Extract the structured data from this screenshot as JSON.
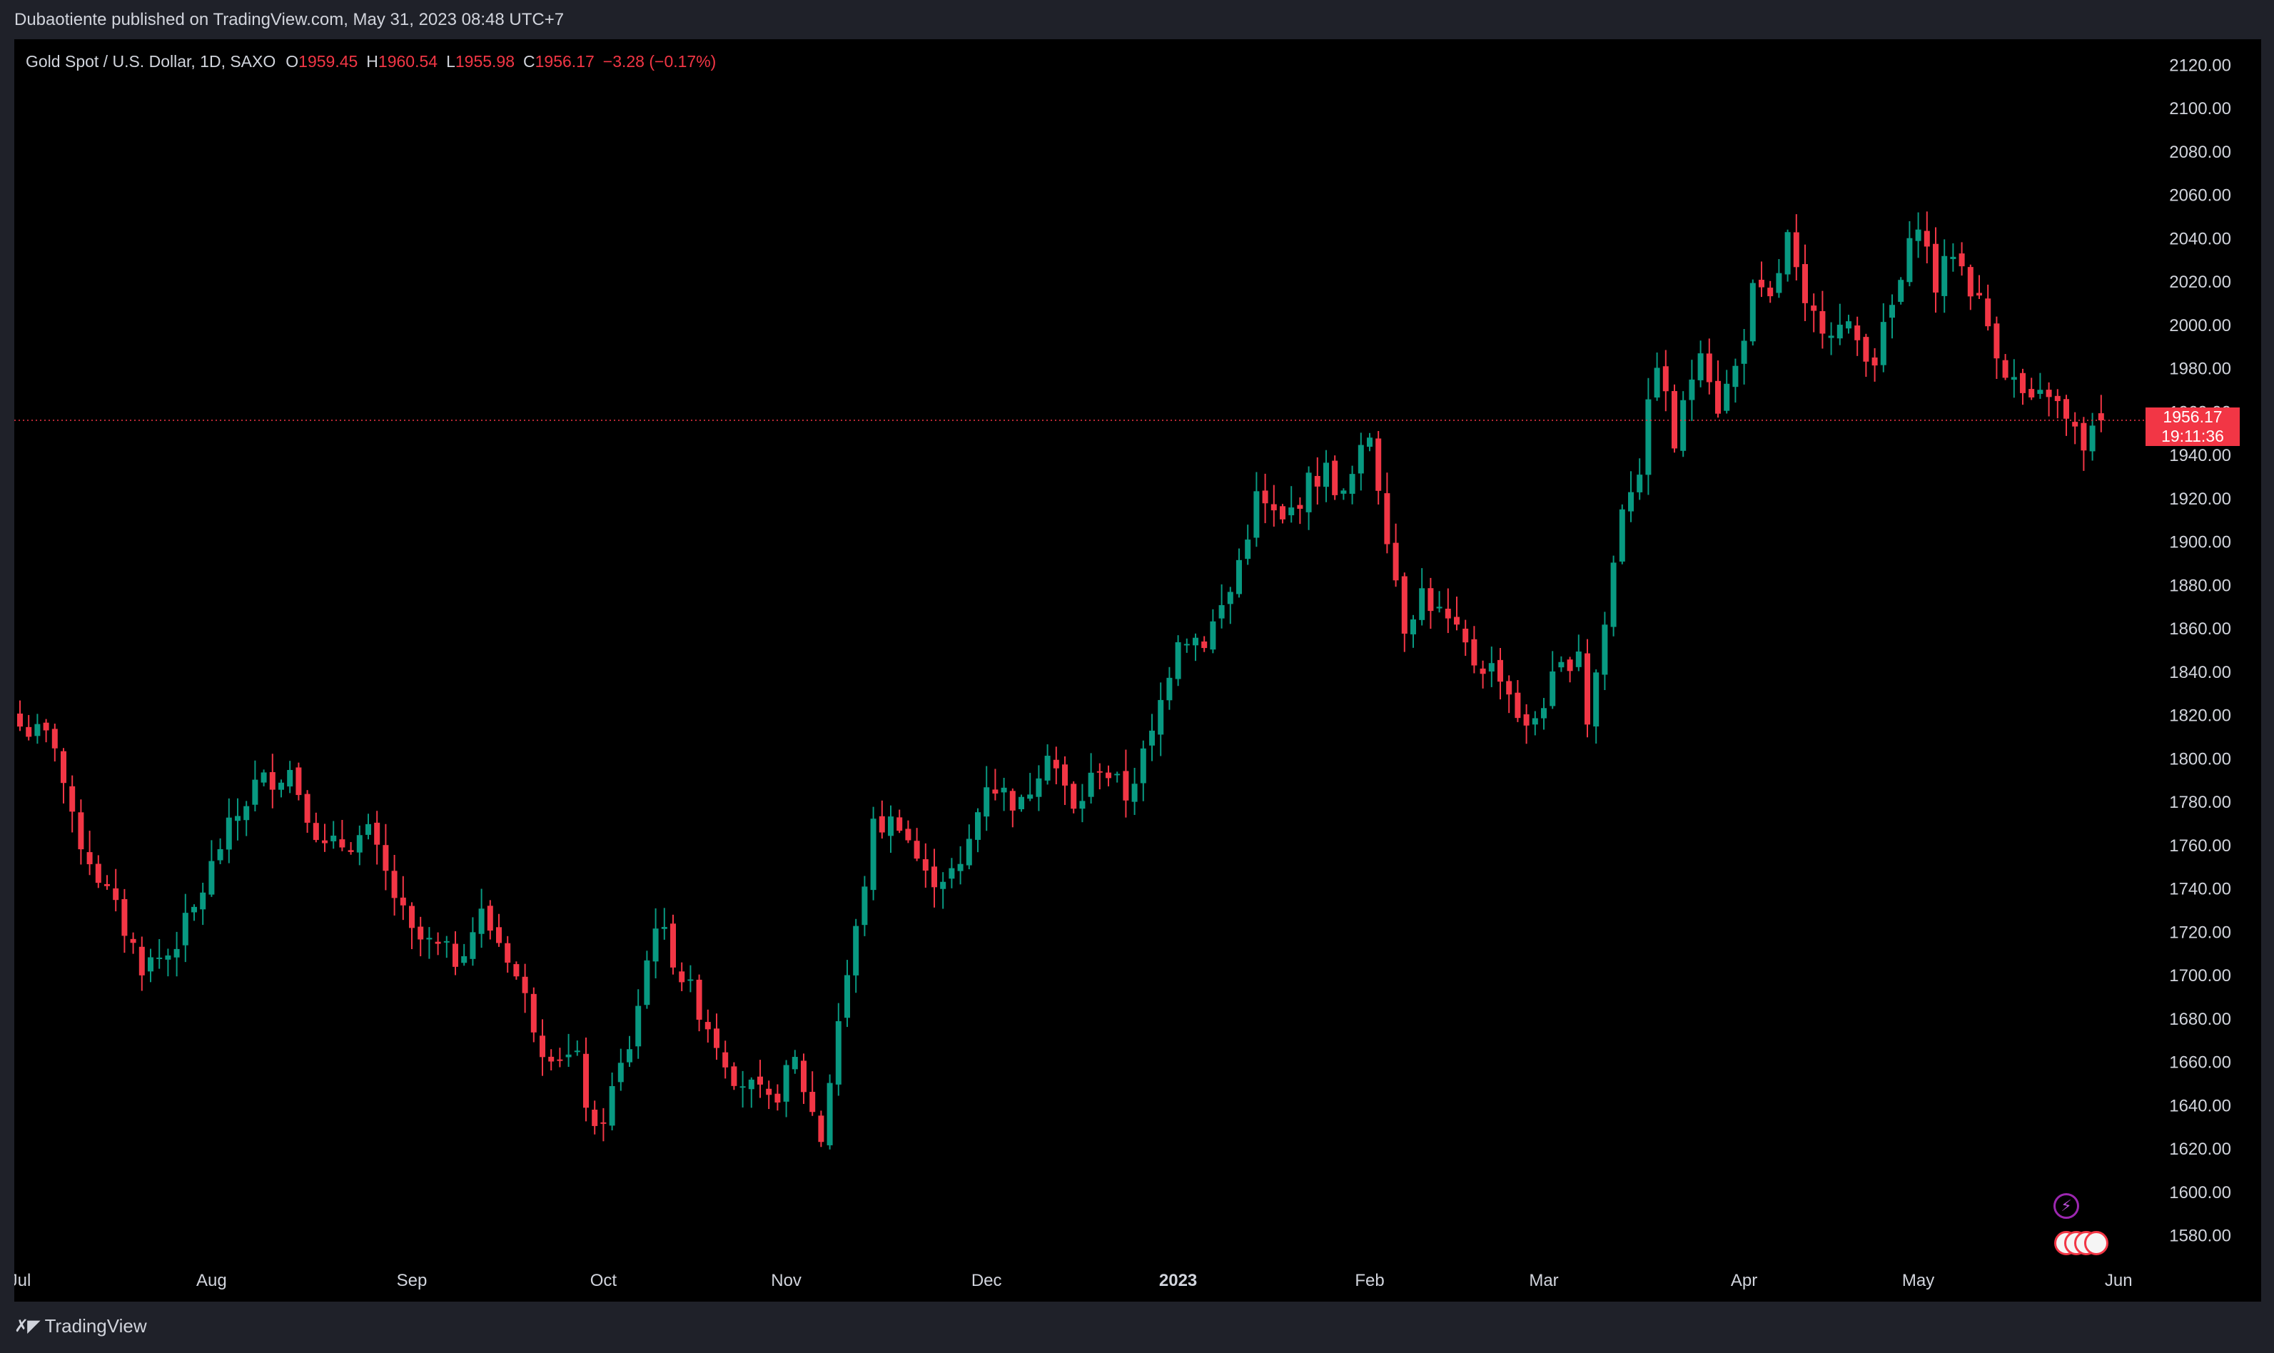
{
  "header": {
    "published": "Dubaotiente published on TradingView.com, May 31, 2023 08:48 UTC+7"
  },
  "legend": {
    "symbol": "Gold Spot / U.S. Dollar, 1D, SAXO",
    "o_label": "O",
    "o_value": "1959.45",
    "h_label": "H",
    "h_value": "1960.54",
    "l_label": "L",
    "l_value": "1955.98",
    "c_label": "C",
    "c_value": "1956.17",
    "change": "−3.28 (−0.17%)"
  },
  "price_tag": {
    "price": "1956.17",
    "countdown": "19:11:36"
  },
  "footer": {
    "brand": "TradingView"
  },
  "colors": {
    "up": "#089981",
    "down": "#f23645",
    "background": "#000000",
    "chrome": "#1f2129",
    "text": "#d1d4dc"
  },
  "icons": [
    "lightning-icon",
    "us-flag-icon",
    "tradingview-logo-icon"
  ],
  "chart_data": {
    "type": "candlestick",
    "title": "Gold Spot / U.S. Dollar, 1D, SAXO",
    "ylim": [
      1568,
      2132
    ],
    "y_ticks": [
      "1580.00",
      "1600.00",
      "1620.00",
      "1640.00",
      "1660.00",
      "1680.00",
      "1700.00",
      "1720.00",
      "1740.00",
      "1760.00",
      "1780.00",
      "1800.00",
      "1820.00",
      "1840.00",
      "1860.00",
      "1880.00",
      "1900.00",
      "1920.00",
      "1940.00",
      "1960.00",
      "1980.00",
      "2000.00",
      "2020.00",
      "2040.00",
      "2060.00",
      "2080.00",
      "2100.00",
      "2120.00"
    ],
    "x_ticks": [
      "Jul",
      "Aug",
      "Sep",
      "Oct",
      "Nov",
      "Dec",
      "2023",
      "Feb",
      "Mar",
      "Apr",
      "May",
      "Jun"
    ],
    "x_ticks_day": [
      0,
      22,
      45,
      67,
      88,
      111,
      133,
      155,
      175,
      198,
      218,
      241
    ],
    "last_price": 1956.17,
    "grid": false,
    "anchors": [
      [
        0,
        1815
      ],
      [
        4,
        1808
      ],
      [
        6,
        1770
      ],
      [
        10,
        1738
      ],
      [
        14,
        1705
      ],
      [
        17,
        1710
      ],
      [
        20,
        1730
      ],
      [
        23,
        1760
      ],
      [
        27,
        1788
      ],
      [
        31,
        1795
      ],
      [
        35,
        1758
      ],
      [
        40,
        1765
      ],
      [
        45,
        1718
      ],
      [
        50,
        1708
      ],
      [
        53,
        1728
      ],
      [
        56,
        1710
      ],
      [
        60,
        1668
      ],
      [
        64,
        1660
      ],
      [
        66,
        1625
      ],
      [
        70,
        1668
      ],
      [
        73,
        1726
      ],
      [
        76,
        1700
      ],
      [
        80,
        1670
      ],
      [
        82,
        1655
      ],
      [
        86,
        1640
      ],
      [
        89,
        1660
      ],
      [
        92,
        1625
      ],
      [
        94,
        1680
      ],
      [
        96,
        1720
      ],
      [
        98,
        1768
      ],
      [
        101,
        1772
      ],
      [
        104,
        1745
      ],
      [
        108,
        1748
      ],
      [
        111,
        1790
      ],
      [
        115,
        1778
      ],
      [
        118,
        1806
      ],
      [
        121,
        1775
      ],
      [
        124,
        1798
      ],
      [
        127,
        1783
      ],
      [
        130,
        1810
      ],
      [
        133,
        1858
      ],
      [
        136,
        1855
      ],
      [
        139,
        1877
      ],
      [
        142,
        1920
      ],
      [
        145,
        1908
      ],
      [
        148,
        1927
      ],
      [
        150,
        1933
      ],
      [
        152,
        1920
      ],
      [
        155,
        1950
      ],
      [
        157,
        1905
      ],
      [
        159,
        1862
      ],
      [
        161,
        1877
      ],
      [
        164,
        1862
      ],
      [
        167,
        1845
      ],
      [
        170,
        1840
      ],
      [
        173,
        1812
      ],
      [
        176,
        1835
      ],
      [
        179,
        1852
      ],
      [
        180,
        1818
      ],
      [
        182,
        1862
      ],
      [
        184,
        1918
      ],
      [
        186,
        1935
      ],
      [
        188,
        1985
      ],
      [
        190,
        1945
      ],
      [
        193,
        1993
      ],
      [
        195,
        1963
      ],
      [
        197,
        1980
      ],
      [
        199,
        2015
      ],
      [
        201,
        2010
      ],
      [
        203,
        2040
      ],
      [
        205,
        2005
      ],
      [
        207,
        2002
      ],
      [
        210,
        1997
      ],
      [
        213,
        1985
      ],
      [
        216,
        2020
      ],
      [
        218,
        2050
      ],
      [
        220,
        2018
      ],
      [
        222,
        2035
      ],
      [
        225,
        2010
      ],
      [
        228,
        1980
      ],
      [
        231,
        1962
      ],
      [
        233,
        1970
      ],
      [
        235,
        1955
      ],
      [
        237,
        1945
      ],
      [
        239,
        1956.17
      ]
    ]
  }
}
